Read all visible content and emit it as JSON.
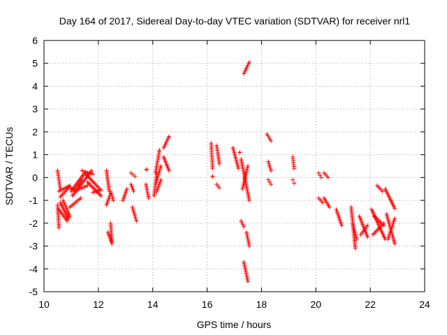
{
  "chart_data": {
    "type": "scatter",
    "title": "Day 164 of 2017, Sidereal Day-to-day VTEC variation (SDTVAR) for receiver nrl1",
    "xlabel": "GPS time / hours",
    "ylabel": "SDTVAR / TECUs",
    "xlim": [
      10,
      24
    ],
    "ylim": [
      -5,
      6
    ],
    "xticks": [
      10,
      12,
      14,
      16,
      18,
      20,
      22,
      24
    ],
    "yticks": [
      -5,
      -4,
      -3,
      -2,
      -1,
      0,
      1,
      2,
      3,
      4,
      5,
      6
    ],
    "grid": true,
    "marker": "plus",
    "color": "#ff0000",
    "segments": [
      {
        "x": [
          10.5,
          10.6
        ],
        "y": [
          0.3,
          -0.5
        ]
      },
      {
        "x": [
          10.5,
          10.55
        ],
        "y": [
          -1.2,
          -2.2
        ]
      },
      {
        "x": [
          10.55,
          10.95
        ],
        "y": [
          -0.6,
          -0.35
        ]
      },
      {
        "x": [
          10.55,
          10.85
        ],
        "y": [
          -1.4,
          -1.9
        ]
      },
      {
        "x": [
          10.6,
          10.9
        ],
        "y": [
          -0.85,
          -0.45
        ]
      },
      {
        "x": [
          10.6,
          10.9
        ],
        "y": [
          -1.1,
          -1.8
        ]
      },
      {
        "x": [
          10.7,
          10.95
        ],
        "y": [
          -1.0,
          -1.7
        ]
      },
      {
        "x": [
          10.9,
          11.2
        ],
        "y": [
          -0.4,
          -0.6
        ]
      },
      {
        "x": [
          10.95,
          11.35
        ],
        "y": [
          -1.3,
          -0.9
        ]
      },
      {
        "x": [
          11.0,
          11.5
        ],
        "y": [
          -0.6,
          0.2
        ]
      },
      {
        "x": [
          11.05,
          11.4
        ],
        "y": [
          -0.8,
          -0.1
        ]
      },
      {
        "x": [
          11.2,
          11.6
        ],
        "y": [
          -0.55,
          -0.35
        ]
      },
      {
        "x": [
          11.3,
          11.75
        ],
        "y": [
          -0.4,
          0.3
        ]
      },
      {
        "x": [
          11.4,
          11.8
        ],
        "y": [
          0.3,
          0.15
        ]
      },
      {
        "x": [
          11.5,
          12.05
        ],
        "y": [
          0.2,
          -0.5
        ]
      },
      {
        "x": [
          11.6,
          12.1
        ],
        "y": [
          -0.2,
          -0.8
        ]
      },
      {
        "x": [
          11.8,
          12.1
        ],
        "y": [
          -0.65,
          -0.55
        ]
      },
      {
        "x": [
          12.3,
          12.4
        ],
        "y": [
          0.3,
          -0.6
        ]
      },
      {
        "x": [
          12.3,
          12.45
        ],
        "y": [
          -1.2,
          -0.7
        ]
      },
      {
        "x": [
          12.35,
          12.5
        ],
        "y": [
          -2.4,
          -2.9
        ]
      },
      {
        "x": [
          12.45,
          12.5
        ],
        "y": [
          -2.0,
          -2.8
        ]
      },
      {
        "x": [
          12.45,
          12.55
        ],
        "y": [
          -0.6,
          -1.0
        ]
      },
      {
        "x": [
          12.9,
          13.05
        ],
        "y": [
          -1.0,
          -0.5
        ]
      },
      {
        "x": [
          13.2,
          13.35
        ],
        "y": [
          0.2,
          0.05
        ]
      },
      {
        "x": [
          13.2,
          13.3
        ],
        "y": [
          -0.3,
          -0.6
        ]
      },
      {
        "x": [
          13.25,
          13.4
        ],
        "y": [
          -1.3,
          -1.9
        ]
      },
      {
        "x": [
          13.75,
          13.8
        ],
        "y": [
          0.35,
          0.35
        ]
      },
      {
        "x": [
          13.75,
          13.85
        ],
        "y": [
          -0.3,
          -0.9
        ]
      },
      {
        "x": [
          14.05,
          14.15
        ],
        "y": [
          -0.8,
          0.2
        ]
      },
      {
        "x": [
          14.1,
          14.25
        ],
        "y": [
          0.2,
          1.2
        ]
      },
      {
        "x": [
          14.1,
          14.3
        ],
        "y": [
          -0.3,
          0.5
        ]
      },
      {
        "x": [
          14.15,
          14.3
        ],
        "y": [
          -0.6,
          -0.1
        ]
      },
      {
        "x": [
          14.4,
          14.6
        ],
        "y": [
          1.3,
          1.8
        ]
      },
      {
        "x": [
          14.4,
          14.6
        ],
        "y": [
          0.9,
          0.3
        ]
      },
      {
        "x": [
          16.15,
          16.2
        ],
        "y": [
          1.5,
          0.4
        ]
      },
      {
        "x": [
          16.2,
          16.2
        ],
        "y": [
          0.05,
          0.05
        ]
      },
      {
        "x": [
          16.35,
          16.45
        ],
        "y": [
          1.4,
          0.6
        ]
      },
      {
        "x": [
          16.35,
          16.45
        ],
        "y": [
          -0.3,
          -0.45
        ]
      },
      {
        "x": [
          16.95,
          17.15
        ],
        "y": [
          1.3,
          0.4
        ]
      },
      {
        "x": [
          17.2,
          17.2
        ],
        "y": [
          1.1,
          1.1
        ]
      },
      {
        "x": [
          17.25,
          17.55
        ],
        "y": [
          0.8,
          -1.0
        ]
      },
      {
        "x": [
          17.3,
          17.5
        ],
        "y": [
          -0.5,
          0.5
        ]
      },
      {
        "x": [
          17.35,
          17.55
        ],
        "y": [
          4.55,
          5.05
        ]
      },
      {
        "x": [
          17.25,
          17.35
        ],
        "y": [
          -1.9,
          -2.15
        ]
      },
      {
        "x": [
          17.35,
          17.5
        ],
        "y": [
          -3.7,
          -4.55
        ]
      },
      {
        "x": [
          17.45,
          17.55
        ],
        "y": [
          -2.4,
          -3.0
        ]
      },
      {
        "x": [
          18.2,
          18.35
        ],
        "y": [
          1.9,
          1.6
        ]
      },
      {
        "x": [
          18.25,
          18.35
        ],
        "y": [
          0.7,
          0.3
        ]
      },
      {
        "x": [
          18.25,
          18.35
        ],
        "y": [
          -0.1,
          -0.3
        ]
      },
      {
        "x": [
          19.15,
          19.2
        ],
        "y": [
          0.9,
          0.4
        ]
      },
      {
        "x": [
          19.15,
          19.2
        ],
        "y": [
          -0.1,
          -0.25
        ]
      },
      {
        "x": [
          20.1,
          20.2
        ],
        "y": [
          0.2,
          0.0
        ]
      },
      {
        "x": [
          20.1,
          20.25
        ],
        "y": [
          -0.9,
          -1.1
        ]
      },
      {
        "x": [
          20.3,
          20.45
        ],
        "y": [
          0.2,
          0.0
        ]
      },
      {
        "x": [
          20.3,
          20.5
        ],
        "y": [
          -0.9,
          -1.3
        ]
      },
      {
        "x": [
          20.75,
          20.95
        ],
        "y": [
          -1.4,
          -2.1
        ]
      },
      {
        "x": [
          21.3,
          21.45
        ],
        "y": [
          -1.3,
          -3.1
        ]
      },
      {
        "x": [
          21.35,
          21.5
        ],
        "y": [
          -2.0,
          -2.7
        ]
      },
      {
        "x": [
          21.6,
          21.9
        ],
        "y": [
          -1.7,
          -2.6
        ]
      },
      {
        "x": [
          21.65,
          21.9
        ],
        "y": [
          -2.5,
          -2.1
        ]
      },
      {
        "x": [
          22.05,
          22.55
        ],
        "y": [
          -1.4,
          -2.7
        ]
      },
      {
        "x": [
          22.1,
          22.5
        ],
        "y": [
          -2.5,
          -2.0
        ]
      },
      {
        "x": [
          22.15,
          22.5
        ],
        "y": [
          -1.7,
          -2.1
        ]
      },
      {
        "x": [
          22.25,
          22.45
        ],
        "y": [
          -0.35,
          -0.6
        ]
      },
      {
        "x": [
          22.55,
          22.9
        ],
        "y": [
          -0.5,
          -1.35
        ]
      },
      {
        "x": [
          22.6,
          22.9
        ],
        "y": [
          -1.6,
          -2.9
        ]
      },
      {
        "x": [
          22.65,
          22.9
        ],
        "y": [
          -2.7,
          -1.8
        ]
      }
    ]
  }
}
